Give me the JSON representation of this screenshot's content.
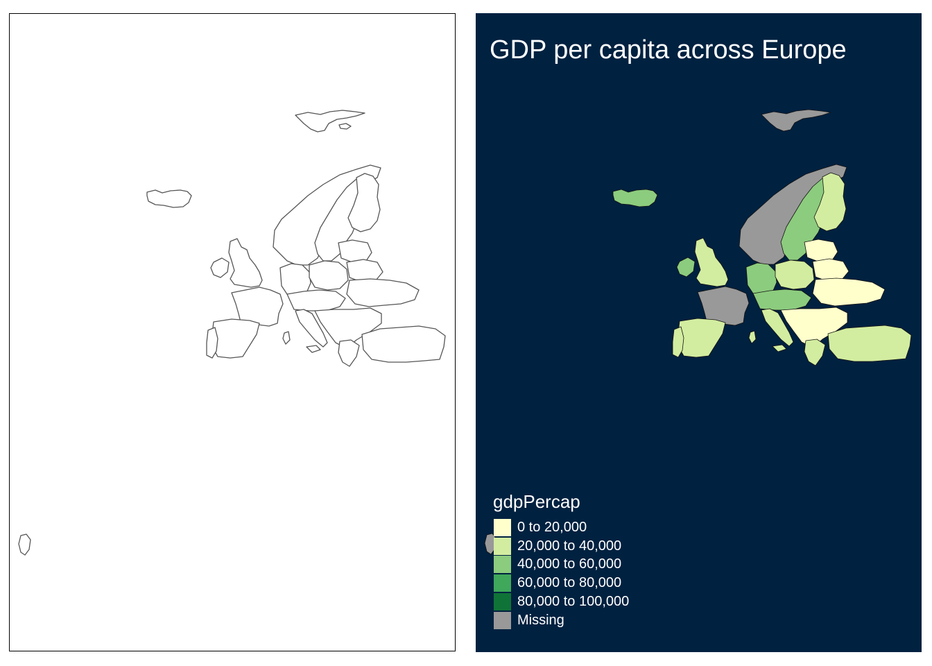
{
  "panels": {
    "right": {
      "title": "GDP per capita across Europe",
      "background_color": "#002140",
      "legend": {
        "title": "gdpPercap",
        "items": [
          {
            "label": "0 to 20,000",
            "color": "#FFFFCC"
          },
          {
            "label": "20,000 to 40,000",
            "color": "#D2EDA0"
          },
          {
            "label": "40,000 to 60,000",
            "color": "#8CCC7E"
          },
          {
            "label": "60,000 to 80,000",
            "color": "#3FA85A"
          },
          {
            "label": "80,000 to 100,000",
            "color": "#0F7337"
          },
          {
            "label": "Missing",
            "color": "#999999"
          }
        ]
      }
    },
    "left": {
      "outline_color": "#555555"
    }
  },
  "regions": [
    {
      "name": "Svalbard",
      "class": "Missing"
    },
    {
      "name": "Iceland",
      "class": "40,000 to 60,000"
    },
    {
      "name": "Norway",
      "class": "Missing"
    },
    {
      "name": "Sweden",
      "class": "40,000 to 60,000"
    },
    {
      "name": "Finland",
      "class": "20,000 to 40,000"
    },
    {
      "name": "United Kingdom",
      "class": "20,000 to 40,000"
    },
    {
      "name": "Ireland",
      "class": "40,000 to 60,000"
    },
    {
      "name": "France",
      "class": "Missing"
    },
    {
      "name": "Spain",
      "class": "20,000 to 40,000"
    },
    {
      "name": "Portugal",
      "class": "20,000 to 40,000"
    },
    {
      "name": "Germany",
      "class": "40,000 to 60,000"
    },
    {
      "name": "Italy",
      "class": "20,000 to 40,000"
    },
    {
      "name": "Poland",
      "class": "20,000 to 40,000"
    },
    {
      "name": "Ukraine",
      "class": "0 to 20,000"
    },
    {
      "name": "Belarus",
      "class": "0 to 20,000"
    },
    {
      "name": "Turkey",
      "class": "20,000 to 40,000"
    },
    {
      "name": "Romania",
      "class": "0 to 20,000"
    },
    {
      "name": "Greece",
      "class": "20,000 to 40,000"
    }
  ]
}
